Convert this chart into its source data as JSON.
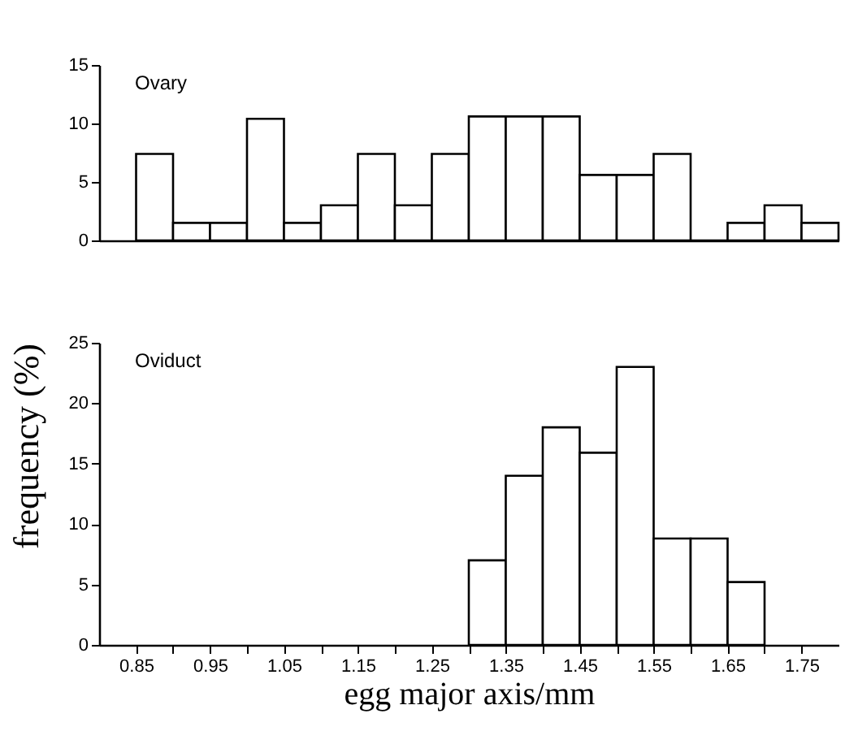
{
  "chart_data": [
    {
      "type": "histogram",
      "bins": [
        0.85,
        0.9,
        0.95,
        1.0,
        1.05,
        1.1,
        1.15,
        1.2,
        1.25,
        1.3,
        1.35,
        1.4,
        1.45,
        1.5,
        1.55,
        1.6,
        1.65,
        1.7,
        1.75,
        1.8
      ],
      "values": [
        7.4,
        1.5,
        1.5,
        10.4,
        1.5,
        3.0,
        7.4,
        3.0,
        7.4,
        10.6,
        10.6,
        10.6,
        5.6,
        5.6,
        7.4,
        0,
        1.5,
        3.0,
        1.5
      ],
      "color": "#ffffff",
      "xlim": [
        0.8,
        1.8
      ],
      "ylim": [
        0,
        15
      ],
      "yticks": [
        0,
        5,
        10,
        15
      ],
      "tick_labels": "y",
      "annotations": [
        "Ovary"
      ]
    },
    {
      "type": "histogram",
      "bins": [
        1.3,
        1.35,
        1.4,
        1.45,
        1.5,
        1.55,
        1.6,
        1.65,
        1.7
      ],
      "values": [
        7,
        14,
        18,
        15.9,
        23,
        8.8,
        8.8,
        5.2
      ],
      "color": "#ffffff",
      "xlim": [
        0.8,
        1.8
      ],
      "ylim": [
        0,
        25
      ],
      "yticks": [
        0,
        5,
        10,
        15,
        20,
        25
      ],
      "xticks": [
        0.85,
        {
          "value": 0.9,
          "label": null
        },
        0.95,
        {
          "value": 1.0,
          "label": null
        },
        1.05,
        {
          "value": 1.1,
          "label": null
        },
        1.15,
        {
          "value": 1.2,
          "label": null
        },
        1.25,
        {
          "value": 1.3,
          "label": null
        },
        1.35,
        {
          "value": 1.4,
          "label": null
        },
        1.45,
        {
          "value": 1.5,
          "label": null
        },
        1.55,
        {
          "value": 1.6,
          "label": null
        },
        1.65,
        {
          "value": 1.7,
          "label": null
        },
        1.75
      ],
      "xlabel": "egg major axis/mm",
      "ylabel": "frequency (%)",
      "annotations": [
        "Oviduct"
      ]
    }
  ]
}
